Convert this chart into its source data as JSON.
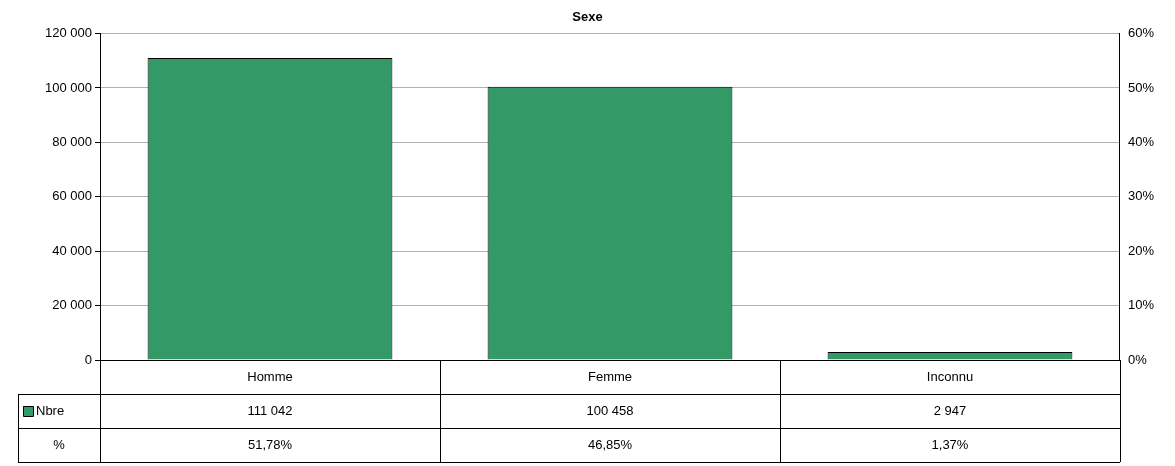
{
  "chart_data": {
    "type": "bar",
    "title": "Sexe",
    "categories": [
      "Homme",
      "Femme",
      "Inconnu"
    ],
    "series": [
      {
        "name": "Nbre",
        "color": "#339966",
        "values": [
          111042,
          100458,
          2947
        ],
        "value_labels": [
          "111 042",
          "100 458",
          "2 947"
        ]
      }
    ],
    "ylim": [
      0,
      120000
    ],
    "yticks": [
      {
        "value": 0,
        "label": "0"
      },
      {
        "value": 20000,
        "label": "20 000"
      },
      {
        "value": 40000,
        "label": "40 000"
      },
      {
        "value": 60000,
        "label": "60 000"
      },
      {
        "value": 80000,
        "label": "80 000"
      },
      {
        "value": 100000,
        "label": "100 000"
      },
      {
        "value": 120000,
        "label": "120 000"
      }
    ],
    "y2lim": [
      0,
      60
    ],
    "y2ticks": [
      {
        "value": 0,
        "label": "0%"
      },
      {
        "value": 10,
        "label": "10%"
      },
      {
        "value": 20,
        "label": "20%"
      },
      {
        "value": 30,
        "label": "30%"
      },
      {
        "value": 40,
        "label": "40%"
      },
      {
        "value": 50,
        "label": "50%"
      },
      {
        "value": 60,
        "label": "60%"
      }
    ],
    "grid": "y",
    "legend": "bottom",
    "annotations": [
      "%",
      "51,78%",
      "46,85%",
      "1,37%"
    ]
  }
}
